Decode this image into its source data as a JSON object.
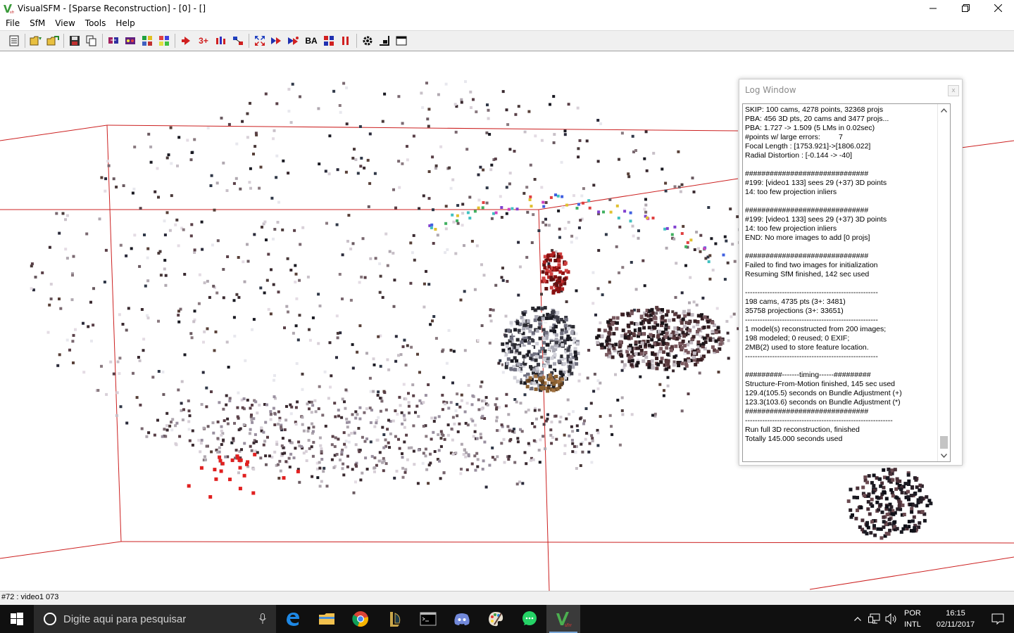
{
  "window": {
    "title": "VisualSFM - [Sparse Reconstruction] - [0] - []",
    "minimize": "—",
    "maximize": "❐",
    "close": "✕"
  },
  "menu": [
    "File",
    "SfM",
    "View",
    "Tools",
    "Help"
  ],
  "toolbar": {
    "label_3plus": "3+",
    "label_ba": "BA"
  },
  "log_window": {
    "title": "Log Window",
    "close": "x",
    "lines": [
      "SKIP: 100 cams, 4278 points, 32368 projs",
      "PBA: 456 3D pts, 20 cams and 3477 projs...",
      "PBA: 1.727 -> 1.509 (5 LMs in 0.02sec)",
      "#points w/ large errors:         7",
      "Focal Length : [1753.921]->[1806.022]",
      "Radial Distortion : [-0.144 -> -40]",
      "",
      "##############################",
      "#199: [video1 133] sees 29 (+37) 3D points",
      "14: too few projection inliers",
      "",
      "##############################",
      "#199: [video1 133] sees 29 (+37) 3D points",
      "14: too few projection inliers",
      "END: No more images to add [0 projs]",
      "",
      "##############################",
      "Failed to find two images for initialization",
      "Resuming SfM finished, 142 sec used",
      "",
      "------------------------------------------------------",
      "198 cams, 4735 pts (3+: 3481)",
      "35758 projections (3+: 33651)",
      "------------------------------------------------------",
      "1 model(s) reconstructed from 200 images;",
      "198 modeled; 0 reused; 0 EXIF;",
      "2MB(2) used to store feature location.",
      "------------------------------------------------------",
      "",
      "#########-------timing------#########",
      "Structure-From-Motion finished, 145 sec used",
      "129.4(105.5) seconds on Bundle Adjustment (+)",
      "123.3(103.6) seconds on Bundle Adjustment (*)",
      "##############################",
      "------------------------------------------------------------",
      "Run full 3D reconstruction, finished",
      "Totally 145.000 seconds used"
    ]
  },
  "status": {
    "text": "#72 : video1 073"
  },
  "taskbar": {
    "search_placeholder": "Digite aqui para pesquisar",
    "lang_line1": "POR",
    "lang_line2": "INTL",
    "time": "16:15",
    "date": "02/11/2017"
  },
  "colors": {
    "frame_red": "#cc2020",
    "taskbar_bg": "#101010"
  }
}
